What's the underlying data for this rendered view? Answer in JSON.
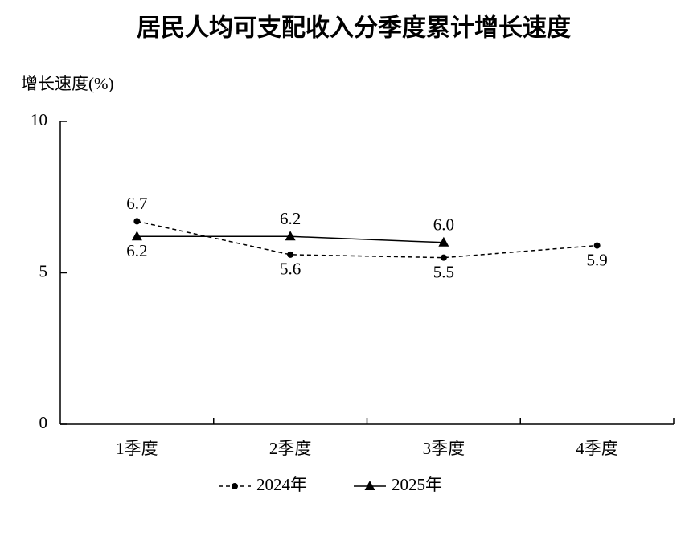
{
  "chart_data": {
    "type": "line",
    "title": "居民人均可支配收入分季度累计增长速度",
    "y_label": "增长速度(%)",
    "categories": [
      "1季度",
      "2季度",
      "3季度",
      "4季度"
    ],
    "series": [
      {
        "name": "2024年",
        "color": "#000000",
        "style": "dashed",
        "marker": "circle",
        "values": [
          6.7,
          5.6,
          5.5,
          5.9
        ]
      },
      {
        "name": "2025年",
        "color": "#000000",
        "style": "solid",
        "marker": "triangle",
        "values": [
          6.2,
          6.2,
          6.0,
          null
        ],
        "value_labels": [
          "6.2",
          "6.2",
          "6.0",
          null
        ]
      }
    ],
    "ylim": [
      0,
      10
    ],
    "yticks": [
      0,
      5,
      10
    ],
    "grid": false,
    "legend": "bottom"
  }
}
